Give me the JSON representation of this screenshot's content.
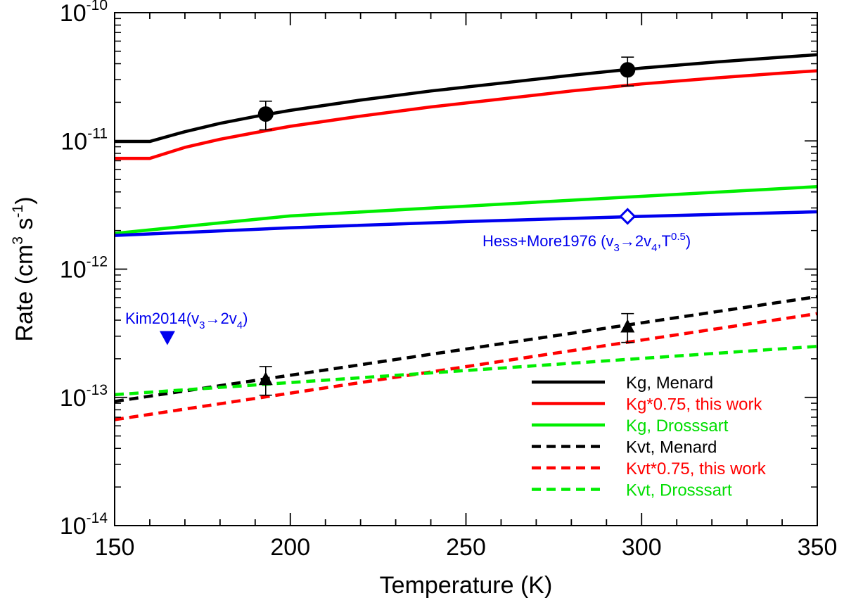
{
  "chart_data": {
    "type": "line",
    "xlabel": "Temperature (K)",
    "ylabel_parts": {
      "prefix": "Rate (cm",
      "exp1": "3",
      "mid": " s",
      "exp2": "-1",
      "suffix": ")"
    },
    "xlim": [
      150,
      350
    ],
    "ylim": [
      1e-14,
      1e-10
    ],
    "y_scale": "log",
    "x_ticks": [
      150,
      200,
      250,
      300,
      350
    ],
    "x_minor_step": 10,
    "y_ticks": [
      {
        "value": 1e-14,
        "base": "10",
        "exp": "-14"
      },
      {
        "value": 1e-13,
        "base": "10",
        "exp": "-13"
      },
      {
        "value": 1e-12,
        "base": "10",
        "exp": "-12"
      },
      {
        "value": 1e-11,
        "base": "10",
        "exp": "-11"
      },
      {
        "value": 1e-10,
        "base": "10",
        "exp": "-10"
      }
    ],
    "grid": false,
    "legend_position": "bottom-right",
    "series": [
      {
        "name": "Kg, Menard",
        "color": "#000000",
        "dash": "solid",
        "x": [
          150,
          160,
          170,
          180,
          190,
          200,
          220,
          240,
          260,
          280,
          300,
          320,
          340,
          350
        ],
        "y": [
          9.9e-12,
          9.9e-12,
          1.18e-11,
          1.37e-11,
          1.55e-11,
          1.73e-11,
          2.08e-11,
          2.45e-11,
          2.82e-11,
          3.25e-11,
          3.7e-11,
          4.1e-11,
          4.5e-11,
          4.7e-11
        ]
      },
      {
        "name": "Kg*0.75, this work",
        "color": "#ff0000",
        "dash": "solid",
        "x": [
          150,
          160,
          170,
          180,
          190,
          200,
          220,
          240,
          260,
          280,
          300,
          320,
          340,
          350
        ],
        "y": [
          7.3e-12,
          7.3e-12,
          8.9e-12,
          1.03e-11,
          1.16e-11,
          1.3e-11,
          1.56e-11,
          1.84e-11,
          2.12e-11,
          2.45e-11,
          2.78e-11,
          3.08e-11,
          3.38e-11,
          3.52e-11
        ]
      },
      {
        "name": "Kg, Drosssart",
        "color": "#00ee00",
        "dash": "solid",
        "x": [
          150,
          200,
          250,
          300,
          350
        ],
        "y": [
          1.9e-12,
          2.6e-12,
          3.1e-12,
          3.7e-12,
          4.4e-12
        ]
      },
      {
        "name": "",
        "color": "#0000ee",
        "dash": "solid",
        "x": [
          150,
          200,
          250,
          300,
          350
        ],
        "y": [
          1.83e-12,
          2.1e-12,
          2.35e-12,
          2.58e-12,
          2.8e-12
        ]
      },
      {
        "name": "Kvt, Menard",
        "color": "#000000",
        "dash": "dash",
        "x": [
          150,
          350
        ],
        "y": [
          9.3e-14,
          6.1e-13
        ]
      },
      {
        "name": "Kvt*0.75, this work",
        "color": "#ff0000",
        "dash": "dash",
        "x": [
          150,
          350
        ],
        "y": [
          6.7e-14,
          4.5e-13
        ]
      },
      {
        "name": "Kvt, Drosssart",
        "color": "#00ee00",
        "dash": "dash",
        "x": [
          150,
          350
        ],
        "y": [
          1.05e-13,
          2.5e-13
        ]
      }
    ],
    "points": [
      {
        "marker": "circle",
        "color": "#000000",
        "x": 193,
        "y": 1.62e-11,
        "err_low": 1.22e-11,
        "err_high": 2.04e-11
      },
      {
        "marker": "circle",
        "color": "#000000",
        "x": 296,
        "y": 3.58e-11,
        "err_low": 2.68e-11,
        "err_high": 4.5e-11
      },
      {
        "marker": "triangle-up",
        "color": "#000000",
        "x": 193,
        "y": 1.38e-13,
        "err_low": 1.04e-13,
        "err_high": 1.74e-13
      },
      {
        "marker": "triangle-up",
        "color": "#000000",
        "x": 296,
        "y": 3.55e-13,
        "err_low": 2.68e-13,
        "err_high": 4.5e-13
      },
      {
        "marker": "diamond-open",
        "color": "#0000ee",
        "x": 296,
        "y": 2.58e-12
      },
      {
        "marker": "triangle-down",
        "color": "#0000ee",
        "x": 165,
        "y": 2.9e-13
      }
    ],
    "annotations": [
      {
        "id": "hess",
        "color": "#0000ee",
        "x": 250,
        "y": 1.85e-12,
        "parts": [
          {
            "t": "Hess+More1976 (v",
            "s": "n"
          },
          {
            "t": "3",
            "s": "sub"
          },
          {
            "t": "→2v",
            "s": "n"
          },
          {
            "t": "4",
            "s": "sub"
          },
          {
            "t": ",T",
            "s": "n"
          },
          {
            "t": "0.5",
            "s": "sup"
          },
          {
            "t": ")",
            "s": "n"
          }
        ]
      },
      {
        "id": "kim",
        "color": "#0000ee",
        "x": 153,
        "y": 4.05e-13,
        "parts": [
          {
            "t": "Kim2014(v",
            "s": "n"
          },
          {
            "t": "3",
            "s": "sub"
          },
          {
            "t": "→2v",
            "s": "n"
          },
          {
            "t": "4",
            "s": "sub"
          },
          {
            "t": ")",
            "s": "n"
          }
        ]
      }
    ]
  }
}
